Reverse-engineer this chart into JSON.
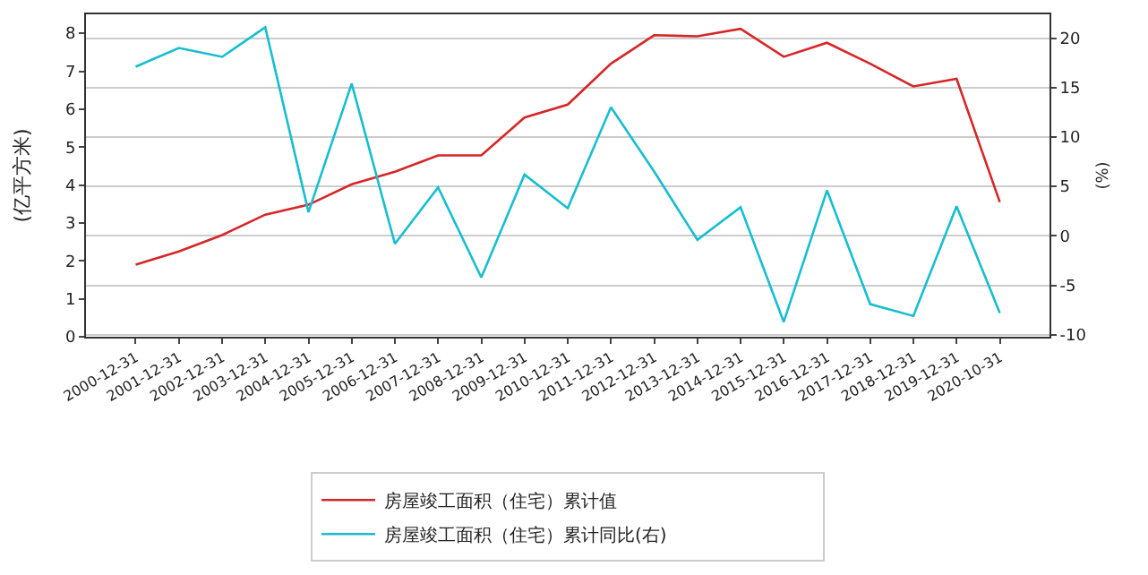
{
  "chart_data": {
    "type": "line",
    "ylabel": "(亿平方米)",
    "y2label": "(%)",
    "categories": [
      "2000-12-31",
      "2001-12-31",
      "2002-12-31",
      "2003-12-31",
      "2004-12-31",
      "2005-12-31",
      "2006-12-31",
      "2007-12-31",
      "2008-12-31",
      "2009-12-31",
      "2010-12-31",
      "2011-12-31",
      "2012-12-31",
      "2013-12-31",
      "2014-12-31",
      "2015-12-31",
      "2016-12-31",
      "2017-12-31",
      "2018-12-31",
      "2019-12-31",
      "2020-10-31"
    ],
    "series": [
      {
        "name": "房屋竣工面积（住宅）累计值",
        "color": "#d62728",
        "values": [
          1.9,
          2.25,
          2.68,
          3.22,
          3.48,
          4.02,
          4.35,
          4.78,
          4.78,
          5.78,
          6.12,
          7.2,
          7.95,
          7.92,
          8.12,
          7.38,
          7.75,
          7.2,
          6.6,
          6.8,
          3.55
        ]
      },
      {
        "name": "房屋竣工面积（住宅）累计同比(右)",
        "color": "#17becf",
        "axis": "y2",
        "values": [
          17.1,
          19.0,
          18.1,
          21.1,
          2.4,
          15.4,
          -0.8,
          4.9,
          -4.2,
          6.2,
          2.8,
          13.0,
          6.5,
          -0.4,
          2.9,
          -8.7,
          4.6,
          -6.9,
          -8.1,
          3.0,
          -7.8
        ]
      }
    ],
    "ylim": [
      0,
      8.5
    ],
    "yticks": [
      0,
      1,
      2,
      3,
      4,
      5,
      6,
      7,
      8
    ],
    "y2lim": [
      -10.2,
      22.4
    ],
    "y2ticks": [
      -10,
      -5,
      0,
      5,
      10,
      15,
      20
    ],
    "grid": "y",
    "legend": "bottom",
    "line_style": "solid",
    "marker": "none"
  }
}
